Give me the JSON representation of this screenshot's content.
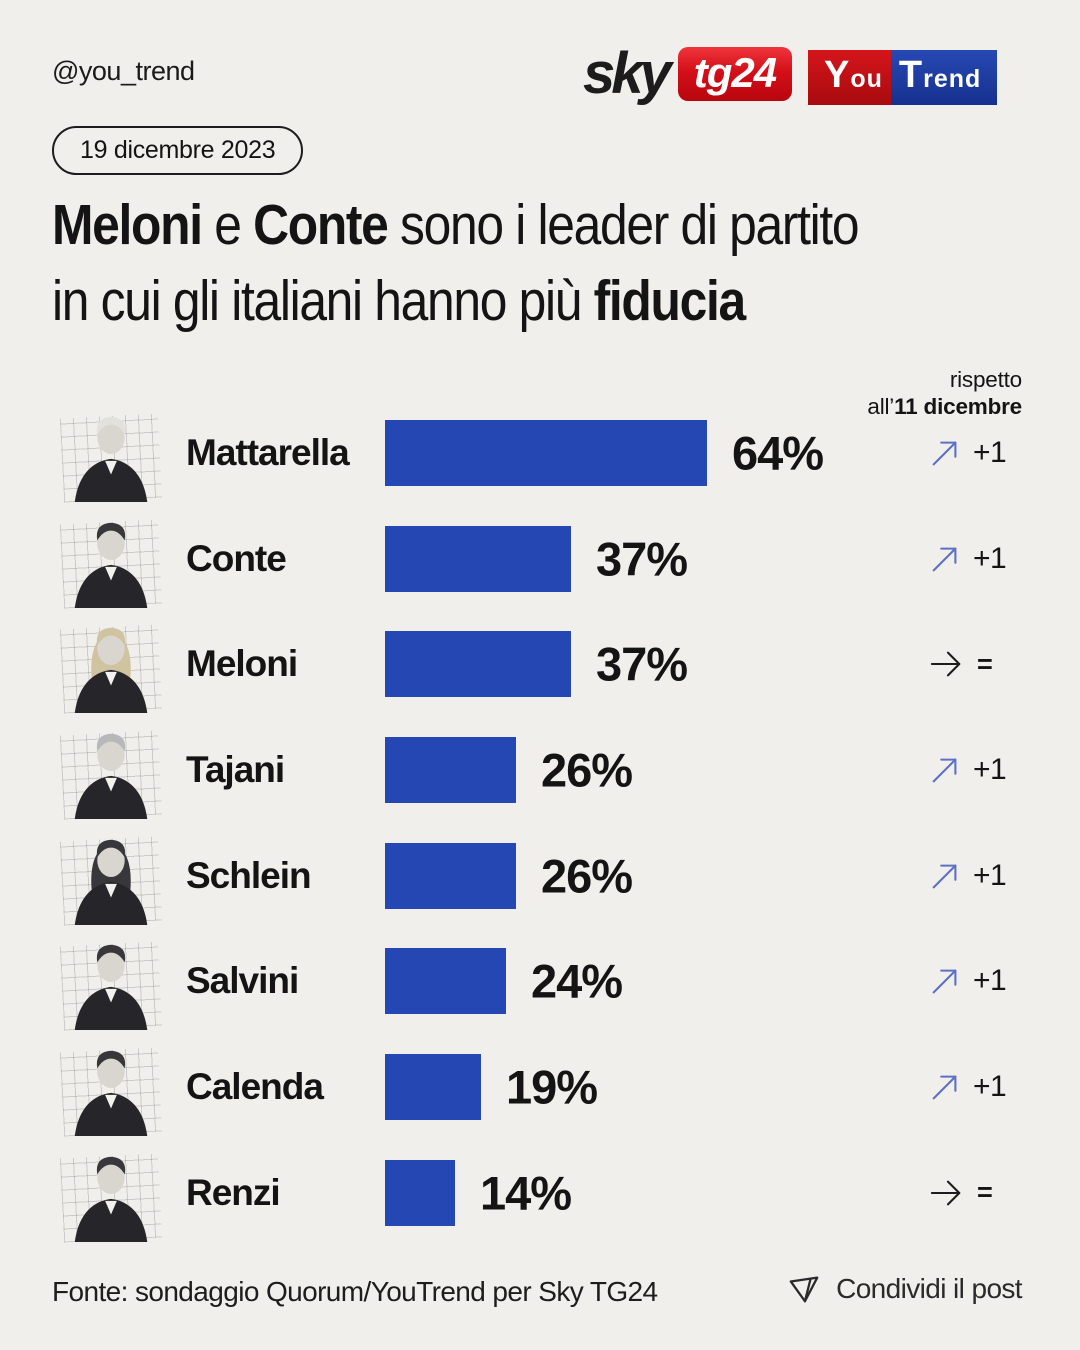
{
  "header": {
    "handle": "@you_trend",
    "sky_logo": {
      "sky": "sky",
      "tg24": "tg24"
    },
    "youtrend_logo": {
      "you": "You",
      "trend": "Trend"
    }
  },
  "date_badge": "19 dicembre 2023",
  "title": {
    "bold_1": "Meloni",
    "mid_1": " e ",
    "bold_2": "Conte",
    "rest_line1": " sono i leader di partito",
    "rest_line2": "in cui gli italiani hanno più ",
    "bold_3": "fiducia"
  },
  "compare_note": {
    "line1": "rispetto",
    "line2_prefix": "all’",
    "line2_bold": "11 dicembre"
  },
  "chart_data": {
    "type": "bar",
    "orientation": "horizontal",
    "title": "Meloni e Conte sono i leader di partito in cui gli italiani hanno più fiducia",
    "unit": "%",
    "xlim": [
      0,
      100
    ],
    "grid": false,
    "legend": "none",
    "note": "variazione rispetto all'11 dicembre",
    "bar_color": "#2547b3",
    "trend_up_color": "#5d70c5",
    "trend_flat_color": "#1c1c1c",
    "categories": [
      "Mattarella",
      "Conte",
      "Meloni",
      "Tajani",
      "Schlein",
      "Salvini",
      "Calenda",
      "Renzi"
    ],
    "values": [
      64,
      37,
      37,
      26,
      26,
      24,
      19,
      14
    ],
    "rows": [
      {
        "name": "Mattarella",
        "value": 64,
        "label": "64%",
        "change": "+1",
        "direction": "up",
        "photo": "mattarella-portrait",
        "hair": "white",
        "long_hair": false
      },
      {
        "name": "Conte",
        "value": 37,
        "label": "37%",
        "change": "+1",
        "direction": "up",
        "photo": "conte-portrait",
        "hair": "dark",
        "long_hair": false
      },
      {
        "name": "Meloni",
        "value": 37,
        "label": "37%",
        "change": "=",
        "direction": "same",
        "photo": "meloni-portrait",
        "hair": "blonde",
        "long_hair": true
      },
      {
        "name": "Tajani",
        "value": 26,
        "label": "26%",
        "change": "+1",
        "direction": "up",
        "photo": "tajani-portrait",
        "hair": "gray",
        "long_hair": false
      },
      {
        "name": "Schlein",
        "value": 26,
        "label": "26%",
        "change": "+1",
        "direction": "up",
        "photo": "schlein-portrait",
        "hair": "dark",
        "long_hair": true
      },
      {
        "name": "Salvini",
        "value": 24,
        "label": "24%",
        "change": "+1",
        "direction": "up",
        "photo": "salvini-portrait",
        "hair": "dark",
        "long_hair": false
      },
      {
        "name": "Calenda",
        "value": 19,
        "label": "19%",
        "change": "+1",
        "direction": "up",
        "photo": "calenda-portrait",
        "hair": "dark",
        "long_hair": false
      },
      {
        "name": "Renzi",
        "value": 14,
        "label": "14%",
        "change": "=",
        "direction": "same",
        "photo": "renzi-portrait",
        "hair": "dark",
        "long_hair": false
      }
    ]
  },
  "footer": {
    "source": "Fonte: sondaggio Quorum/YouTrend per Sky TG24",
    "share_label": "Condividi il post"
  },
  "colors": {
    "background": "#f0efec",
    "bar": "#2547b3",
    "trend_up_arrow": "#5d70c5",
    "sky_red": "#d40f18",
    "youtrend_red": "#c20d12",
    "youtrend_blue": "#1e3ea6",
    "text": "#141414"
  }
}
